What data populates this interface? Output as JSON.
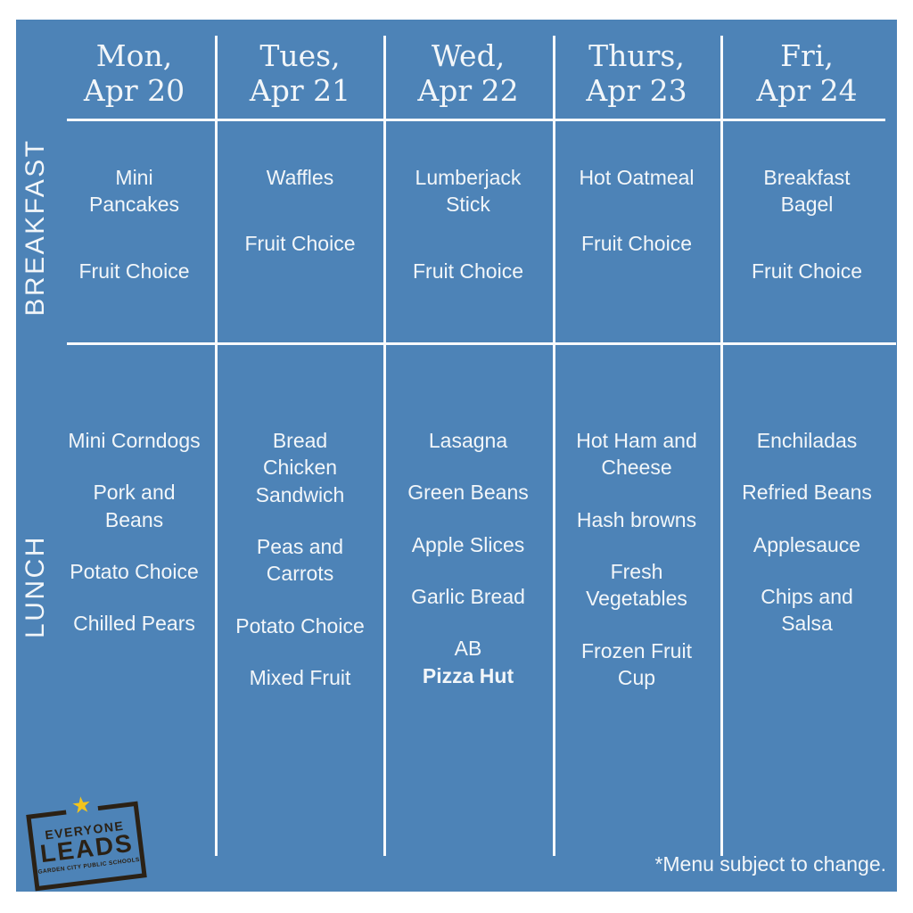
{
  "colors": {
    "board_blue": "#4d83b7",
    "grid_line": "#f8fafc",
    "text_white": "#f2f6f9",
    "logo_dark": "#2b2115",
    "logo_star_yellow": "#f2c41d"
  },
  "row_labels": {
    "breakfast": "BREAKFAST",
    "lunch": "LUNCH"
  },
  "columns": [
    {
      "day": "Mon, Apr 20",
      "header_lines": [
        "Mon,",
        "Apr 20"
      ],
      "breakfast": [
        {
          "lines": [
            "Mini",
            "Pancakes"
          ]
        },
        {
          "lines": [
            "Fruit Choice"
          ]
        }
      ],
      "lunch": [
        {
          "lines": [
            "Mini Corndogs"
          ]
        },
        {
          "lines": [
            "Pork and",
            "Beans"
          ]
        },
        {
          "lines": [
            "Potato Choice"
          ]
        },
        {
          "lines": [
            "Chilled Pears"
          ]
        }
      ]
    },
    {
      "day": "Tues, Apr 21",
      "header_lines": [
        "Tues,",
        "Apr 21"
      ],
      "breakfast": [
        {
          "lines": [
            "Waffles"
          ]
        },
        {
          "lines": [
            "Fruit Choice"
          ]
        }
      ],
      "lunch": [
        {
          "lines": [
            "Bread",
            "Chicken",
            "Sandwich"
          ]
        },
        {
          "lines": [
            "Peas and",
            "Carrots"
          ]
        },
        {
          "lines": [
            "Potato Choice"
          ]
        },
        {
          "lines": [
            "Mixed Fruit"
          ]
        }
      ]
    },
    {
      "day": "Wed, Apr 22",
      "header_lines": [
        "Wed,",
        "Apr 22"
      ],
      "breakfast": [
        {
          "lines": [
            "Lumberjack",
            "Stick"
          ]
        },
        {
          "lines": [
            "Fruit Choice"
          ]
        }
      ],
      "lunch": [
        {
          "lines": [
            "Lasagna"
          ]
        },
        {
          "lines": [
            "Green Beans"
          ]
        },
        {
          "lines": [
            "Apple Slices"
          ]
        },
        {
          "lines": [
            "Garlic Bread"
          ]
        },
        {
          "lines": [
            "AB"
          ],
          "bold_lines": [
            "Pizza Hut"
          ]
        }
      ]
    },
    {
      "day": "Thurs, Apr 23",
      "header_lines": [
        "Thurs,",
        "Apr 23"
      ],
      "breakfast": [
        {
          "lines": [
            "Hot Oatmeal"
          ]
        },
        {
          "lines": [
            "Fruit Choice"
          ]
        }
      ],
      "lunch": [
        {
          "lines": [
            "Hot Ham and",
            "Cheese"
          ]
        },
        {
          "lines": [
            "Hash browns"
          ]
        },
        {
          "lines": [
            "Fresh",
            "Vegetables"
          ]
        },
        {
          "lines": [
            "Frozen Fruit",
            "Cup"
          ]
        }
      ]
    },
    {
      "day": "Fri, Apr 24",
      "header_lines": [
        "Fri,",
        "Apr 24"
      ],
      "breakfast": [
        {
          "lines": [
            "Breakfast",
            "Bagel"
          ]
        },
        {
          "lines": [
            "Fruit Choice"
          ]
        }
      ],
      "lunch": [
        {
          "lines": [
            "Enchiladas"
          ]
        },
        {
          "lines": [
            "Refried Beans"
          ]
        },
        {
          "lines": [
            "Applesauce"
          ]
        },
        {
          "lines": [
            "Chips and",
            "Salsa"
          ]
        }
      ]
    }
  ],
  "footer": {
    "note": "*Menu subject to change."
  },
  "logo": {
    "star": "★",
    "line1": "EVERYONE",
    "line2": "LEADS",
    "line3": "GARDEN CITY PUBLIC SCHOOLS"
  }
}
